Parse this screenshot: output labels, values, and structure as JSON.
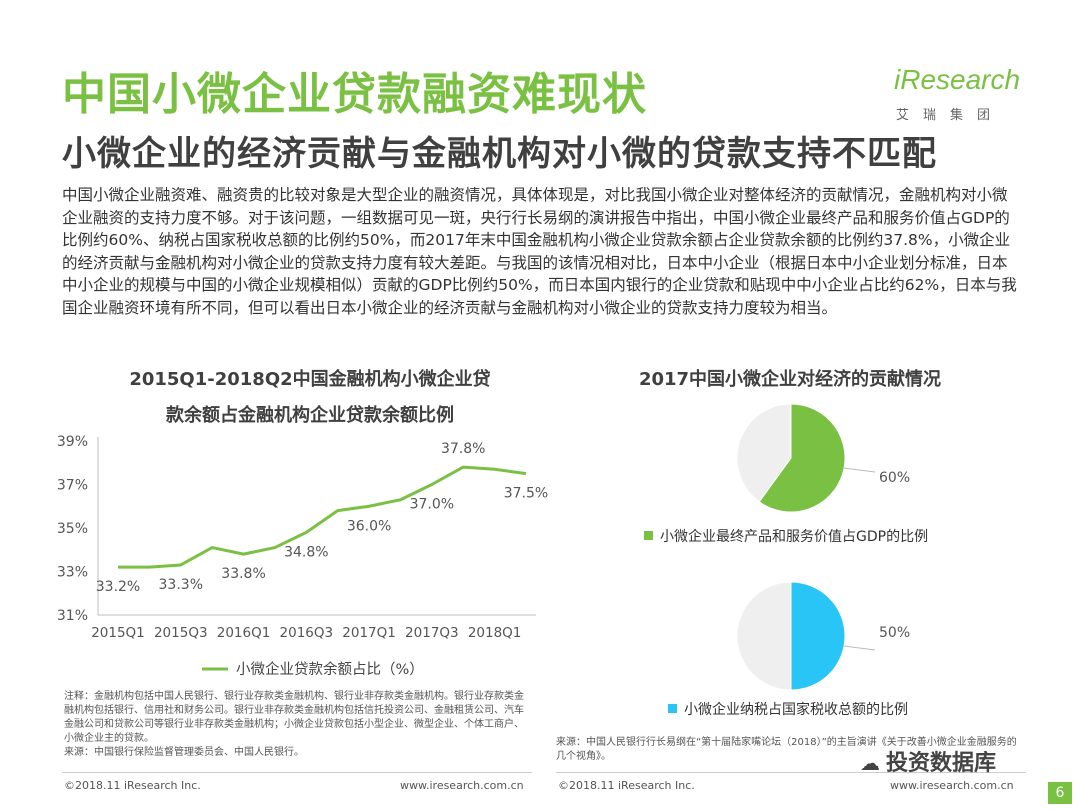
{
  "header": {
    "title": "中国小微企业贷款融资难现状",
    "subtitle": "小微企业的经济贡献与金融机构对小微的贷款支持不匹配",
    "logo_text": "iResearch",
    "logo_cn": "艾瑞集团"
  },
  "body_text": "中国小微企业融资难、融资贵的比较对象是大型企业的融资情况，具体体现是，对比我国小微企业对整体经济的贡献情况，金融机构对小微企业融资的支持力度不够。对于该问题，一组数据可见一斑，央行行长易纲的演讲报告中指出，中国小微企业最终产品和服务价值占GDP的比例约60%、纳税占国家税收总额的比例约50%，而2017年末中国金融机构小微企业贷款余额占企业贷款余额的比例约37.8%，小微企业的经济贡献与金融机构对小微企业的贷款支持力度有较大差距。与我国的该情况相对比，日本中小企业（根据日本中小企业划分标准，日本中小企业的规模与中国的小微企业规模相似）贡献的GDP比例约50%，而日本国内银行的企业贷款和贴现中中小企业占比约62%，日本与我国企业融资环境有所不同，但可以看出日本小微企业的经济贡献与金融机构对小微企业的贷款支持力度较为相当。",
  "colors": {
    "green": "#7ac143",
    "cyan": "#29c5f6",
    "grey_slice": "#efefef"
  },
  "chart_data": [
    {
      "type": "line",
      "title_line1": "2015Q1-2018Q2中国金融机构小微企业贷",
      "title_line2": "款余额占金融机构企业贷款余额比例",
      "x": [
        "2015Q1",
        "2015Q2",
        "2015Q3",
        "2015Q4",
        "2016Q1",
        "2016Q2",
        "2016Q3",
        "2016Q4",
        "2017Q1",
        "2017Q2",
        "2017Q3",
        "2017Q4",
        "2018Q1",
        "2018Q2"
      ],
      "x_tick_labels": [
        "2015Q1",
        "2015Q3",
        "2016Q1",
        "2016Q3",
        "2017Q1",
        "2017Q3",
        "2018Q1"
      ],
      "y_tick_labels": [
        "39%",
        "37%",
        "35%",
        "33%",
        "31%"
      ],
      "ylim": [
        31,
        39
      ],
      "series": [
        {
          "name": "小微企业贷款余额占比（%）",
          "values": [
            33.2,
            33.2,
            33.3,
            34.1,
            33.8,
            34.1,
            34.8,
            35.8,
            36.0,
            36.3,
            37.0,
            37.8,
            37.7,
            37.5
          ]
        }
      ],
      "data_labels": [
        {
          "index": 0,
          "text": "33.2%"
        },
        {
          "index": 2,
          "text": "33.3%"
        },
        {
          "index": 4,
          "text": "33.8%"
        },
        {
          "index": 6,
          "text": "34.8%"
        },
        {
          "index": 8,
          "text": "36.0%"
        },
        {
          "index": 10,
          "text": "37.0%"
        },
        {
          "index": 11,
          "text": "37.8%"
        },
        {
          "index": 13,
          "text": "37.5%"
        }
      ],
      "legend": "bottom",
      "grid": false
    },
    {
      "type": "pie",
      "title": "2017中国小微企业对经济的贡献情况",
      "slices": [
        {
          "label": "小微企业最终产品和服务价值占GDP的比例",
          "value": 60,
          "value_label": "60%",
          "color": "#7ac143"
        },
        {
          "label": "",
          "value": 40,
          "value_label": "",
          "color": "#efefef"
        }
      ]
    },
    {
      "type": "pie",
      "title": "",
      "slices": [
        {
          "label": "小微企业纳税占国家税收总额的比例",
          "value": 50,
          "value_label": "50%",
          "color": "#29c5f6"
        },
        {
          "label": "",
          "value": 50,
          "value_label": "",
          "color": "#efefef"
        }
      ]
    }
  ],
  "notes": {
    "left": "注释：金融机构包括中国人民银行、银行业存款类金融机构、银行业非存款类金融机构。银行业存款类金融机构包括银行、信用社和财务公司。银行业非存款类金融机构包括信托投资公司、金融租赁公司、汽车金融公司和贷款公司等银行业非存款类金融机构；小微企业贷款包括小型企业、微型企业、个体工商户、小微企业主的贷款。",
    "left_source": "来源：中国银行保险监督管理委员会、中国人民银行。",
    "right_source": "来源：中国人民银行行长易纲在“第十届陆家嘴论坛（2018）”的主旨演讲《关于改善小微企业金融服务的几个视角》。"
  },
  "footer": {
    "copyright_left": "©2018.11 iResearch Inc.",
    "site_left": "www.iresearch.com.cn",
    "copyright_right": "©2018.11 iResearch Inc.",
    "site_right": "www.iresearch.com.cn",
    "watermark": "投资数据库",
    "page_number": "6"
  }
}
